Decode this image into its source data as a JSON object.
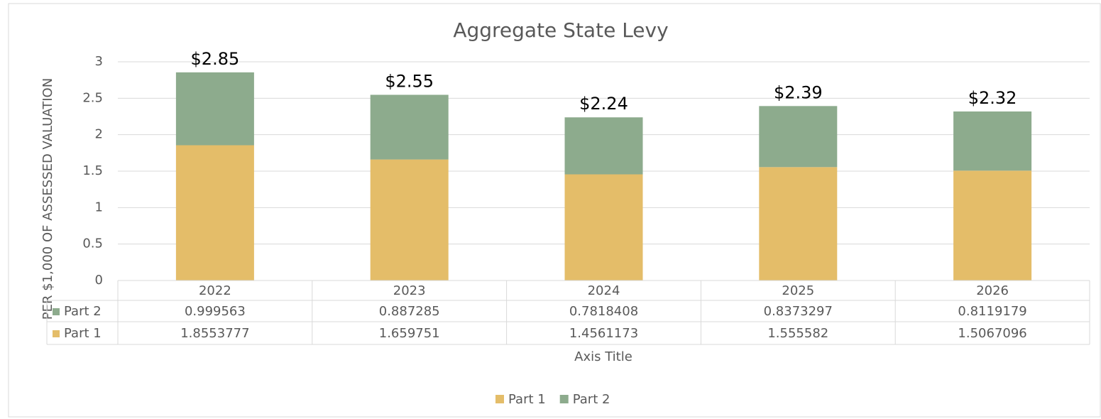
{
  "chart_data": {
    "type": "bar",
    "stacked": true,
    "title": "Aggregate State Levy",
    "y_label": "PER $1,000 OF ASSESSED VALUATION",
    "x_label": "Axis Title",
    "categories": [
      "2022",
      "2023",
      "2024",
      "2025",
      "2026"
    ],
    "series": [
      {
        "name": "Part 1",
        "color": "#e4bd69",
        "values": [
          1.8553777,
          1.659751,
          1.4561173,
          1.555582,
          1.5067096
        ]
      },
      {
        "name": "Part 2",
        "color": "#8dab8d",
        "values": [
          0.999563,
          0.887285,
          0.7818408,
          0.8373297,
          0.8119179
        ]
      }
    ],
    "total_labels": [
      "$2.85",
      "$2.55",
      "$2.24",
      "$2.39",
      "$2.32"
    ],
    "ylim": [
      0,
      3
    ],
    "yticks": [
      0,
      0.5,
      1,
      1.5,
      2,
      2.5,
      3
    ],
    "grid": true,
    "legend": "bottom",
    "data_table": true
  }
}
